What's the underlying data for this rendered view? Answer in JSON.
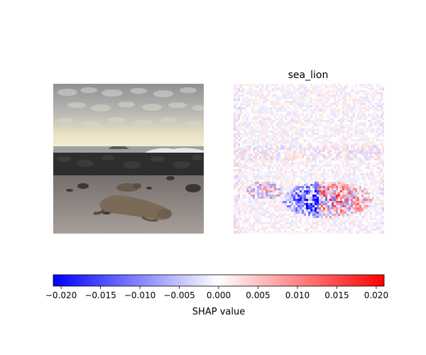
{
  "chart_data": {
    "type": "heatmap",
    "panels": [
      {
        "name": "input-image",
        "title": "",
        "content": "photo"
      },
      {
        "name": "shap-map",
        "title": "sea_lion",
        "content": "shap-heatmap"
      }
    ],
    "colorbar": {
      "label": "SHAP value",
      "range": [
        -0.021,
        0.021
      ],
      "ticks": [
        -0.02,
        -0.015,
        -0.01,
        -0.005,
        0.0,
        0.005,
        0.01,
        0.015,
        0.02
      ],
      "tick_labels": [
        "−0.020",
        "−0.015",
        "−0.010",
        "−0.005",
        "0.000",
        "0.005",
        "0.010",
        "0.015",
        "0.020"
      ],
      "colormap": [
        "#0000ff",
        "#ffffff",
        "#ff0000"
      ]
    }
  }
}
